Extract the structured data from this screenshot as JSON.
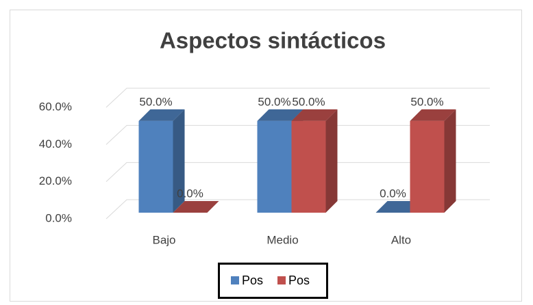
{
  "chart_data": {
    "type": "bar3d",
    "title": "Aspectos sintácticos",
    "categories": [
      "Bajo",
      "Medio",
      "Alto"
    ],
    "series": [
      {
        "name": "Pos",
        "color": "#4f81bd",
        "values": [
          50,
          50,
          0
        ],
        "value_labels": [
          "50.0%",
          "50.0%",
          "0.0%"
        ]
      },
      {
        "name": "Pos",
        "color": "#c0504d",
        "values": [
          0,
          50,
          50
        ],
        "value_labels": [
          "0.0%",
          "50.0%",
          "50.0%"
        ]
      }
    ],
    "ylim": [
      0,
      60
    ],
    "yticks": [
      {
        "value": 0,
        "label": "0.0%"
      },
      {
        "value": 20,
        "label": "20.0%"
      },
      {
        "value": 40,
        "label": "40.0%"
      },
      {
        "value": 60,
        "label": "60.0%"
      }
    ],
    "grid": true,
    "legend": "bottom"
  }
}
